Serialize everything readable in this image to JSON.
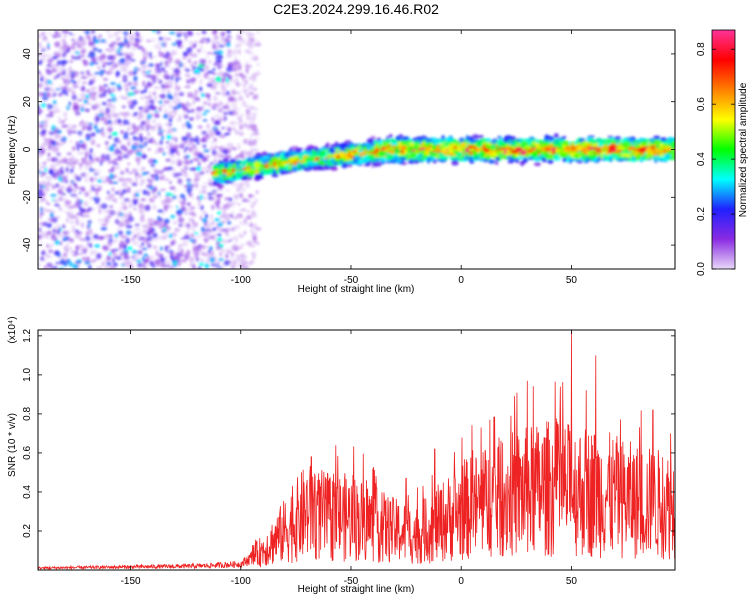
{
  "page": {
    "title": "C2E3.2024.299.16.46.R02"
  },
  "chart_data": [
    {
      "type": "heatmap",
      "title": "C2E3.2024.299.16.46.R02",
      "xlabel": "Height of straight line (km)",
      "ylabel": "Frequency (Hz)",
      "xlim": [
        -192,
        97
      ],
      "ylim": [
        -50,
        50
      ],
      "x_ticks": [
        -150,
        -100,
        -50,
        0,
        50
      ],
      "y_ticks": [
        -40,
        -20,
        0,
        20,
        40
      ],
      "colorbar": {
        "label": "Normalized spectral amplitude",
        "range": [
          0,
          0.87
        ],
        "ticks": [
          0.0,
          0.2,
          0.4,
          0.6,
          0.8
        ],
        "colormap": [
          "#e8d8f8",
          "#8a2be2",
          "#2020ff",
          "#00ffff",
          "#00ff00",
          "#ffff00",
          "#ff7f00",
          "#ff0000",
          "#ff3399"
        ]
      },
      "ridge": {
        "description_points": [
          {
            "x": -110,
            "y": -10
          },
          {
            "x": -90,
            "y": -7
          },
          {
            "x": -70,
            "y": -4
          },
          {
            "x": -50,
            "y": -2
          },
          {
            "x": -30,
            "y": 0
          },
          {
            "x": 0,
            "y": 0
          },
          {
            "x": 50,
            "y": 0
          },
          {
            "x": 95,
            "y": 0
          }
        ],
        "noise_region_x": [
          -192,
          -98
        ]
      }
    },
    {
      "type": "line",
      "xlabel": "Height of straight line (km)",
      "ylabel": "SNR (10 * v/v)",
      "y_multiplier": "(x10⁴)",
      "xlim": [
        -192,
        97
      ],
      "ylim": [
        0,
        1.23
      ],
      "x_ticks": [
        -150,
        -100,
        -50,
        0,
        50
      ],
      "y_ticks": [
        0.2,
        0.4,
        0.6,
        0.8,
        1.0,
        1.2
      ],
      "series": [
        {
          "color": "#ee2222",
          "envelope": [
            {
              "x": -192,
              "y": 0.01
            },
            {
              "x": -120,
              "y": 0.02
            },
            {
              "x": -100,
              "y": 0.03
            },
            {
              "x": -90,
              "y": 0.1
            },
            {
              "x": -75,
              "y": 0.25
            },
            {
              "x": -70,
              "y": 0.3
            },
            {
              "x": -60,
              "y": 0.27
            },
            {
              "x": -50,
              "y": 0.27
            },
            {
              "x": -30,
              "y": 0.2
            },
            {
              "x": -20,
              "y": 0.18
            },
            {
              "x": -10,
              "y": 0.24
            },
            {
              "x": 0,
              "y": 0.3
            },
            {
              "x": 20,
              "y": 0.38
            },
            {
              "x": 40,
              "y": 0.42
            },
            {
              "x": 60,
              "y": 0.4
            },
            {
              "x": 80,
              "y": 0.35
            },
            {
              "x": 97,
              "y": 0.33
            }
          ],
          "peaks": [
            {
              "x": -68,
              "y": 0.58
            },
            {
              "x": -43,
              "y": 0.46
            },
            {
              "x": -25,
              "y": 0.47
            },
            {
              "x": -12,
              "y": 0.62
            },
            {
              "x": 13,
              "y": 0.77
            },
            {
              "x": 30,
              "y": 0.97
            },
            {
              "x": 45,
              "y": 0.94
            },
            {
              "x": 50,
              "y": 1.23
            },
            {
              "x": 61,
              "y": 1.1
            },
            {
              "x": 87,
              "y": 0.82
            },
            {
              "x": 95,
              "y": 0.7
            }
          ]
        }
      ]
    }
  ]
}
